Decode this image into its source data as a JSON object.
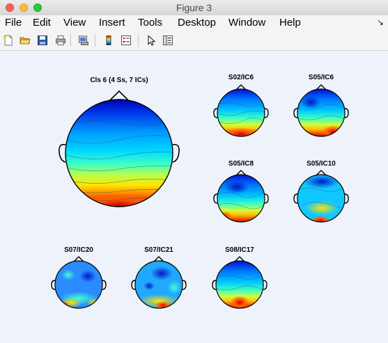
{
  "window": {
    "title": "Figure 3"
  },
  "menu": {
    "items": [
      "File",
      "Edit",
      "View",
      "Insert",
      "Tools",
      "Desktop",
      "Window",
      "Help"
    ]
  },
  "toolbar": {
    "icons": [
      "new-file-icon",
      "open-folder-icon",
      "save-icon",
      "print-icon",
      "print-preview-icon",
      "colorbar-icon",
      "legend-icon",
      "pointer-icon",
      "property-editor-icon"
    ]
  },
  "plots": [
    {
      "title": "Cls 6 (4 Ss, 7 ICs)"
    },
    {
      "title": "S02/IC6"
    },
    {
      "title": "S05/IC6"
    },
    {
      "title": "S05/IC8"
    },
    {
      "title": "S05/IC10"
    },
    {
      "title": "S07/IC20"
    },
    {
      "title": "S07/IC21"
    },
    {
      "title": "S08/IC17"
    }
  ]
}
